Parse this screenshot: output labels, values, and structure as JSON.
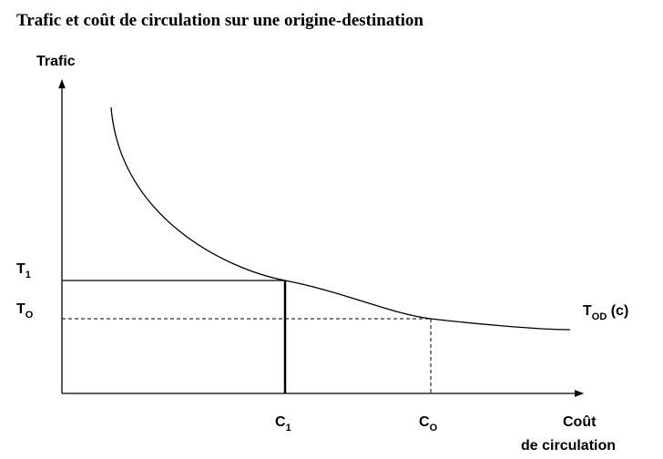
{
  "title": "Trafic et coût de circulation sur une origine-destination",
  "y_axis_label": "Trafic",
  "x_axis_label": [
    "Coût",
    "de circulation"
  ],
  "labels": {
    "t1": {
      "base": "T",
      "sub": "1"
    },
    "to": {
      "base": "T",
      "sub": "O"
    },
    "curve": {
      "base": "T",
      "sub": "OD",
      "suffix": " (c)"
    },
    "c1": {
      "base": "C",
      "sub": "1"
    },
    "co": {
      "base": "C",
      "sub": "O"
    }
  }
}
